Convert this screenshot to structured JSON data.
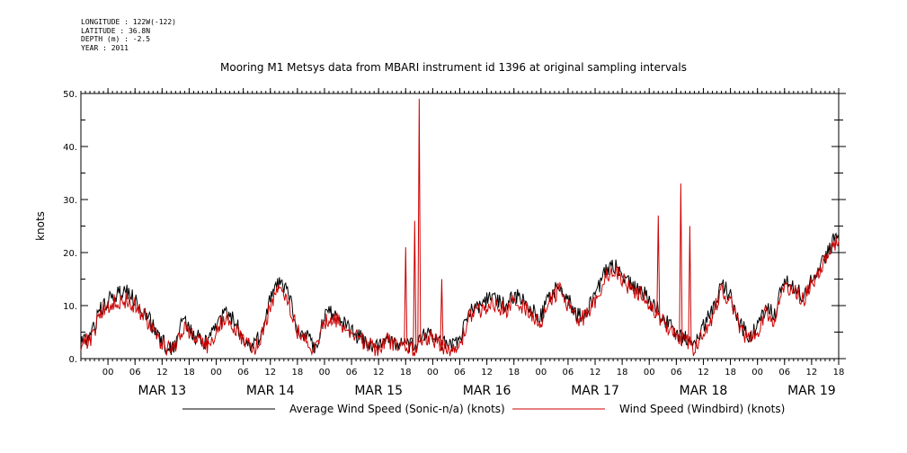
{
  "meta": {
    "longitude": "LONGITUDE : 122W(-122)",
    "latitude": "LATITUDE : 36.8N",
    "depth": "DEPTH (m) : -2.5",
    "year": "YEAR : 2011"
  },
  "chart_data": {
    "type": "line",
    "title": "Mooring M1 Metsys data from MBARI instrument id 1396 at original sampling intervals",
    "ylabel": "knots",
    "xlabel": "",
    "ylim": [
      0,
      50
    ],
    "yticks": [
      "0.",
      "10.",
      "20.",
      "30.",
      "40.",
      "50."
    ],
    "hour_ticks": [
      "00",
      "06",
      "12",
      "18",
      "00",
      "06",
      "12",
      "18",
      "00",
      "06",
      "12",
      "18",
      "00",
      "06",
      "12",
      "18",
      "00",
      "06",
      "12",
      "18",
      "00",
      "06",
      "12",
      "18",
      "00",
      "06",
      "12",
      "18"
    ],
    "day_labels": [
      "MAR 13",
      "MAR 14",
      "MAR 15",
      "MAR 16",
      "MAR 17",
      "MAR 18",
      "MAR 19"
    ],
    "x_unit": "hours since MAR 12 18:00",
    "xlim": [
      0,
      168
    ],
    "grid": false,
    "legend_position": "bottom",
    "series": [
      {
        "name": "Average Wind Speed (Sonic-n/a) (knots)",
        "color": "#000000",
        "x": [
          0,
          2,
          3,
          4,
          6,
          8,
          10,
          12,
          14,
          16,
          18,
          20,
          21,
          22,
          23,
          24,
          26,
          28,
          30,
          32,
          34,
          36,
          38,
          40,
          42,
          44,
          46,
          48,
          50,
          52,
          54,
          56,
          58,
          60,
          62,
          64,
          66,
          68,
          70,
          72,
          74,
          76,
          78,
          80,
          82,
          84,
          86,
          88,
          90,
          92,
          94,
          96,
          98,
          100,
          102,
          104,
          106,
          108,
          110,
          112,
          114,
          116,
          118,
          120,
          122,
          124,
          126,
          128,
          130,
          132,
          134,
          136,
          138,
          140,
          142,
          144,
          146,
          148,
          150,
          152,
          153,
          154,
          155,
          156,
          158,
          160,
          162,
          164,
          166,
          168
        ],
        "y": [
          3.5,
          4,
          6,
          9,
          11,
          12,
          12.5,
          11,
          9,
          6,
          3,
          2,
          3,
          6,
          7,
          5,
          4,
          3,
          6,
          9,
          7,
          4,
          2,
          5,
          11,
          15,
          12,
          6,
          4,
          2,
          8,
          9,
          7,
          5,
          4,
          3,
          2,
          4,
          3,
          3,
          2,
          5,
          4,
          3,
          2,
          3,
          9,
          10,
          11,
          11,
          10,
          12,
          11,
          9,
          8,
          12,
          14,
          11,
          8,
          9,
          12,
          16,
          18,
          16,
          14,
          13,
          11,
          9,
          7,
          5,
          4,
          2,
          6,
          9,
          14,
          12,
          7,
          4,
          6,
          10,
          9,
          8,
          13,
          15,
          14,
          12,
          15,
          18,
          21,
          24
        ]
      },
      {
        "name": "Wind Speed (Windbird) (knots)",
        "color": "#cc0000",
        "x": [
          0,
          2,
          3,
          4,
          6,
          8,
          10,
          12,
          14,
          16,
          18,
          20,
          21,
          22,
          23,
          24,
          26,
          28,
          30,
          32,
          34,
          36,
          38,
          40,
          42,
          44,
          46,
          48,
          50,
          52,
          54,
          56,
          58,
          60,
          62,
          64,
          66,
          68,
          70,
          72,
          74,
          76,
          78,
          80,
          82,
          84,
          86,
          88,
          90,
          92,
          94,
          96,
          98,
          100,
          102,
          104,
          106,
          108,
          110,
          112,
          114,
          116,
          118,
          120,
          122,
          124,
          126,
          128,
          130,
          132,
          134,
          136,
          138,
          140,
          142,
          144,
          146,
          148,
          150,
          152,
          153,
          154,
          155,
          156,
          158,
          160,
          162,
          164,
          166,
          168
        ],
        "y": [
          3,
          3.5,
          5,
          8,
          10,
          11,
          11,
          10,
          8,
          5,
          2.5,
          1.5,
          2.5,
          5,
          6,
          4.5,
          3.5,
          2.5,
          5,
          8,
          6,
          3.5,
          1.5,
          4,
          10,
          14,
          11,
          5,
          3.5,
          1.5,
          7,
          8,
          6,
          4.5,
          3.5,
          2.5,
          1.5,
          3.5,
          2.5,
          2.5,
          1.5,
          4.5,
          3.5,
          2.5,
          1.5,
          2.5,
          8,
          9,
          10,
          10,
          9,
          11,
          10,
          8,
          7,
          11,
          13,
          10,
          7,
          8,
          11,
          15,
          17,
          15,
          13,
          12,
          10,
          8,
          6,
          4.5,
          3.5,
          1.5,
          5,
          8,
          13,
          11,
          6,
          3.5,
          5,
          9,
          8,
          7,
          12,
          14,
          13,
          11,
          14,
          17,
          20,
          23
        ]
      }
    ],
    "spikes": [
      {
        "series": 1,
        "x": 75,
        "y": 49
      },
      {
        "series": 1,
        "x": 74,
        "y": 26
      },
      {
        "series": 1,
        "x": 72,
        "y": 21
      },
      {
        "series": 1,
        "x": 80,
        "y": 15
      },
      {
        "series": 1,
        "x": 128,
        "y": 27
      },
      {
        "series": 1,
        "x": 133,
        "y": 33
      },
      {
        "series": 1,
        "x": 135,
        "y": 25
      }
    ]
  },
  "legend": {
    "item1": "Average Wind Speed (Sonic-n/a) (knots)",
    "item2": "Wind Speed (Windbird) (knots)"
  }
}
